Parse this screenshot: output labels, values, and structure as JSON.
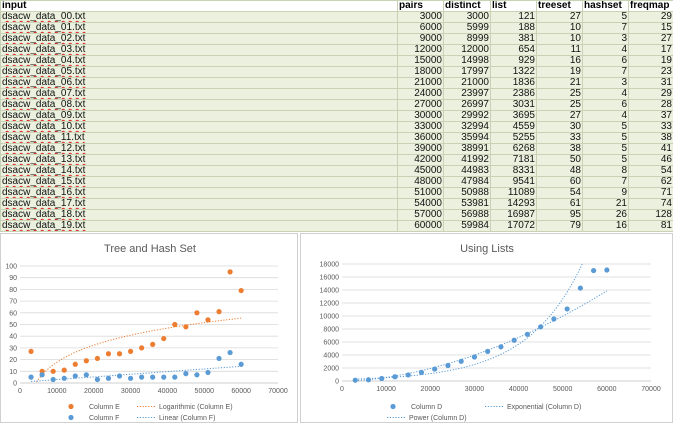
{
  "table": {
    "headers": [
      "input",
      "pairs",
      "distinct",
      "list",
      "treeset",
      "hashset",
      "freqmap"
    ],
    "rows": [
      [
        "dsacw_data_00.txt",
        3000,
        3000,
        121,
        27,
        5,
        29
      ],
      [
        "dsacw_data_01.txt",
        6000,
        5999,
        188,
        10,
        7,
        15
      ],
      [
        "dsacw_data_02.txt",
        9000,
        8999,
        381,
        10,
        3,
        27
      ],
      [
        "dsacw_data_03.txt",
        12000,
        12000,
        654,
        11,
        4,
        17
      ],
      [
        "dsacw_data_04.txt",
        15000,
        14998,
        929,
        16,
        6,
        19
      ],
      [
        "dsacw_data_05.txt",
        18000,
        17997,
        1322,
        19,
        7,
        23
      ],
      [
        "dsacw_data_06.txt",
        21000,
        21000,
        1836,
        21,
        3,
        31
      ],
      [
        "dsacw_data_07.txt",
        24000,
        23997,
        2386,
        25,
        4,
        29
      ],
      [
        "dsacw_data_08.txt",
        27000,
        26997,
        3031,
        25,
        6,
        28
      ],
      [
        "dsacw_data_09.txt",
        30000,
        29992,
        3695,
        27,
        4,
        37
      ],
      [
        "dsacw_data_10.txt",
        33000,
        32994,
        4559,
        30,
        5,
        33
      ],
      [
        "dsacw_data_11.txt",
        36000,
        35994,
        5255,
        33,
        5,
        38
      ],
      [
        "dsacw_data_12.txt",
        39000,
        38991,
        6268,
        38,
        5,
        41
      ],
      [
        "dsacw_data_13.txt",
        42000,
        41992,
        7181,
        50,
        5,
        46
      ],
      [
        "dsacw_data_14.txt",
        45000,
        44983,
        8331,
        48,
        8,
        54
      ],
      [
        "dsacw_data_15.txt",
        48000,
        47984,
        9541,
        60,
        7,
        62
      ],
      [
        "dsacw_data_16.txt",
        51000,
        50988,
        11089,
        54,
        9,
        71
      ],
      [
        "dsacw_data_17.txt",
        54000,
        53981,
        14293,
        61,
        21,
        74
      ],
      [
        "dsacw_data_18.txt",
        57000,
        56988,
        16987,
        95,
        26,
        128
      ],
      [
        "dsacw_data_19.txt",
        60000,
        59984,
        17072,
        79,
        16,
        81
      ]
    ]
  },
  "chart_data": [
    {
      "type": "scatter",
      "title": "Tree and Hash Set",
      "xlim": [
        0,
        70000
      ],
      "ylim": [
        0,
        100
      ],
      "x_ticks": [
        "0",
        "10000",
        "20000",
        "30000",
        "40000",
        "50000",
        "60000",
        "70000"
      ],
      "y_ticks": [
        "0",
        "10",
        "20",
        "30",
        "40",
        "50",
        "60",
        "70",
        "80",
        "90",
        "100"
      ],
      "grid": true,
      "legend_position": "bottom",
      "x": [
        3000,
        6000,
        9000,
        12000,
        15000,
        18000,
        21000,
        24000,
        27000,
        30000,
        33000,
        36000,
        39000,
        42000,
        45000,
        48000,
        51000,
        54000,
        57000,
        60000
      ],
      "series": [
        {
          "name": "Column E",
          "color": "#ed7d31",
          "values": [
            27,
            10,
            10,
            11,
            16,
            19,
            21,
            25,
            25,
            27,
            30,
            33,
            38,
            50,
            48,
            60,
            54,
            61,
            95,
            79
          ]
        },
        {
          "name": "Column F",
          "color": "#5b9bd5",
          "values": [
            5,
            7,
            3,
            4,
            6,
            7,
            3,
            4,
            6,
            4,
            5,
            5,
            5,
            5,
            8,
            7,
            9,
            21,
            26,
            16
          ]
        }
      ],
      "trendlines": [
        {
          "name": "Logarithmic (Column E)",
          "kind": "logarithmic",
          "color": "#ed7d31"
        },
        {
          "name": "Linear (Column F)",
          "kind": "linear",
          "color": "#5b9bd5"
        }
      ]
    },
    {
      "type": "scatter",
      "title": "Using Lists",
      "xlim": [
        0,
        70000
      ],
      "ylim": [
        0,
        18000
      ],
      "x_ticks": [
        "0",
        "10000",
        "20000",
        "30000",
        "40000",
        "50000",
        "60000",
        "70000"
      ],
      "y_ticks": [
        "0",
        "2000",
        "4000",
        "6000",
        "8000",
        "10000",
        "12000",
        "14000",
        "16000",
        "18000"
      ],
      "grid": true,
      "legend_position": "bottom",
      "x": [
        3000,
        6000,
        9000,
        12000,
        15000,
        18000,
        21000,
        24000,
        27000,
        30000,
        33000,
        36000,
        39000,
        42000,
        45000,
        48000,
        51000,
        54000,
        57000,
        60000
      ],
      "series": [
        {
          "name": "Column D",
          "color": "#5b9bd5",
          "values": [
            121,
            188,
            381,
            654,
            929,
            1322,
            1836,
            2386,
            3031,
            3695,
            4559,
            5255,
            6268,
            7181,
            8331,
            9541,
            11089,
            14293,
            16987,
            17072
          ]
        }
      ],
      "trendlines": [
        {
          "name": "Exponential (Column D)",
          "kind": "exponential",
          "color": "#5b9bd5"
        },
        {
          "name": "Power (Column D)",
          "kind": "power",
          "color": "#5b9bd5"
        }
      ]
    }
  ]
}
